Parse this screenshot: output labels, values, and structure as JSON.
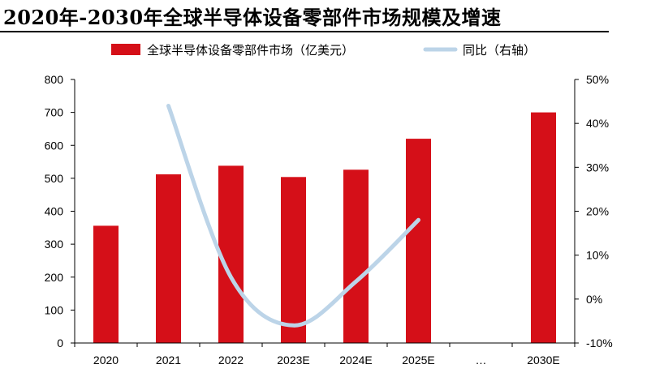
{
  "title": "2020年-2030年全球半导体设备零部件市场规模及增速",
  "colors": {
    "bar": "#d50f18",
    "line": "#bcd4e8",
    "axis": "#000000"
  },
  "chart_data": {
    "type": "bar",
    "categories": [
      "2020",
      "2021",
      "2022",
      "2023E",
      "2024E",
      "2025E",
      "…",
      "2030E"
    ],
    "series": [
      {
        "name": "全球半导体设备零部件市场（亿美元）",
        "type": "bar",
        "axis": "left",
        "values": [
          356,
          512,
          538,
          504,
          526,
          620,
          null,
          700
        ]
      },
      {
        "name": "同比（右轴）",
        "type": "line",
        "axis": "right",
        "smooth": true,
        "values": [
          null,
          44,
          5,
          -6,
          4,
          18,
          null,
          null
        ]
      }
    ],
    "ylim_left": [
      0,
      800
    ],
    "yticks_left": [
      "0",
      "100",
      "200",
      "300",
      "400",
      "500",
      "600",
      "700",
      "800"
    ],
    "ylim_right": [
      -10,
      50
    ],
    "yticks_right": [
      "-10%",
      "0%",
      "10%",
      "20%",
      "30%",
      "40%",
      "50%"
    ],
    "legend_position": "top",
    "grid": false
  }
}
